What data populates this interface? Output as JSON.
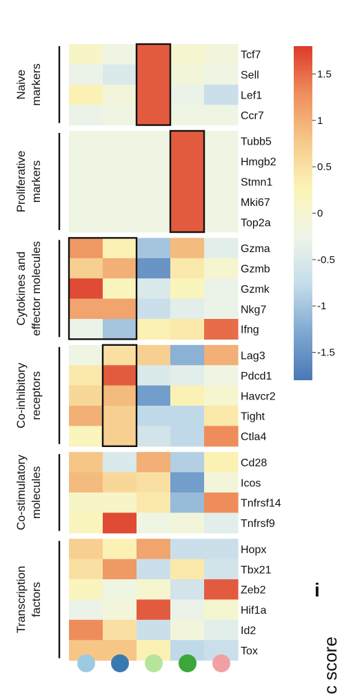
{
  "chart_data": {
    "type": "heatmap",
    "colorbar": {
      "min": -1.8,
      "max": 1.8,
      "ticks": [
        1.5,
        1,
        0.5,
        0,
        -0.5,
        -1,
        -1.5
      ],
      "colors": [
        "#4a78b5",
        "#7fa8d0",
        "#c4dcea",
        "#eef5e8",
        "#fbf5b8",
        "#f6c98a",
        "#ee8f5c",
        "#dc3a2c"
      ]
    },
    "columns": [
      {
        "color": "#9ecae1"
      },
      {
        "color": "#3a79b0"
      },
      {
        "color": "#b5e49a"
      },
      {
        "color": "#3ca63a"
      },
      {
        "color": "#f2a0a4"
      }
    ],
    "groups": [
      {
        "label_lines": [
          "Naive",
          "markers"
        ],
        "rows": [
          {
            "gene": "Tcf7",
            "values": [
              0.1,
              -0.2,
              1.6,
              0.0,
              -0.1
            ]
          },
          {
            "gene": "Sell",
            "values": [
              -0.3,
              -0.5,
              1.6,
              -0.1,
              -0.2
            ]
          },
          {
            "gene": "Lef1",
            "values": [
              0.3,
              -0.1,
              1.6,
              -0.3,
              -0.7
            ]
          },
          {
            "gene": "Ccr7",
            "values": [
              -0.3,
              -0.2,
              1.6,
              -0.2,
              -0.2
            ]
          }
        ],
        "highlight": [
          {
            "col_start": 2,
            "col_end": 2,
            "row_start": 0,
            "row_end": 3
          }
        ]
      },
      {
        "label_lines": [
          "Proliferative",
          "markers"
        ],
        "rows": [
          {
            "gene": "Tubb5",
            "values": [
              -0.2,
              -0.2,
              -0.2,
              1.6,
              -0.2
            ]
          },
          {
            "gene": "Hmgb2",
            "values": [
              -0.2,
              -0.2,
              -0.2,
              1.6,
              -0.2
            ]
          },
          {
            "gene": "Stmn1",
            "values": [
              -0.2,
              -0.2,
              -0.2,
              1.6,
              -0.2
            ]
          },
          {
            "gene": "Mki67",
            "values": [
              -0.2,
              -0.2,
              -0.2,
              1.6,
              -0.2
            ]
          },
          {
            "gene": "Top2a",
            "values": [
              -0.2,
              -0.2,
              -0.2,
              1.6,
              -0.2
            ]
          }
        ],
        "highlight": [
          {
            "col_start": 3,
            "col_end": 3,
            "row_start": 0,
            "row_end": 4
          }
        ]
      },
      {
        "label_lines": [
          "Cytokines and",
          "effector molecules"
        ],
        "rows": [
          {
            "gene": "Gzma",
            "values": [
              1.2,
              0.3,
              -1.0,
              0.9,
              -0.4
            ]
          },
          {
            "gene": "Gzmb",
            "values": [
              0.7,
              1.0,
              -1.5,
              0.4,
              0.0
            ]
          },
          {
            "gene": "Gzmk",
            "values": [
              1.7,
              0.2,
              -0.5,
              0.2,
              -0.3
            ]
          },
          {
            "gene": "Nkg7",
            "values": [
              1.1,
              1.1,
              -0.7,
              -0.4,
              -0.3
            ]
          },
          {
            "gene": "Ifng",
            "values": [
              -0.3,
              -1.0,
              0.3,
              0.4,
              1.5
            ]
          }
        ],
        "highlight": [
          {
            "col_start": 0,
            "col_end": 1,
            "row_start": 0,
            "row_end": 4
          }
        ]
      },
      {
        "label_lines": [
          "Co-inhibitory",
          "receptors"
        ],
        "rows": [
          {
            "gene": "Lag3",
            "values": [
              -0.2,
              0.5,
              0.7,
              -1.2,
              1.0
            ]
          },
          {
            "gene": "Pdcd1",
            "values": [
              0.4,
              1.6,
              -0.5,
              -0.4,
              -0.2
            ]
          },
          {
            "gene": "Havcr2",
            "values": [
              0.6,
              0.9,
              -1.4,
              0.3,
              0.0
            ]
          },
          {
            "gene": "Tight",
            "values": [
              1.0,
              0.7,
              -0.8,
              -0.8,
              0.4
            ]
          },
          {
            "gene": "Ctla4",
            "values": [
              0.2,
              0.7,
              -0.6,
              -0.8,
              1.3
            ]
          }
        ],
        "highlight": [
          {
            "col_start": 1,
            "col_end": 1,
            "row_start": 0,
            "row_end": 4
          }
        ]
      },
      {
        "label_lines": [
          "Co-stimulatory",
          "molecules"
        ],
        "rows": [
          {
            "gene": "Cd28",
            "values": [
              0.8,
              -0.5,
              1.0,
              -0.9,
              0.3
            ]
          },
          {
            "gene": "Icos",
            "values": [
              0.9,
              0.6,
              0.5,
              -1.4,
              -0.1
            ]
          },
          {
            "gene": "Tnfrsf14",
            "values": [
              0.1,
              0.1,
              0.4,
              -1.1,
              1.3
            ]
          },
          {
            "gene": "Tnfrsf9",
            "values": [
              0.2,
              1.7,
              -0.2,
              -0.1,
              -0.4
            ]
          }
        ],
        "highlight": []
      },
      {
        "label_lines": [
          "Transcription",
          "factors"
        ],
        "rows": [
          {
            "gene": "Hopx",
            "values": [
              0.7,
              0.3,
              1.1,
              -0.7,
              -0.7
            ]
          },
          {
            "gene": "Tbx21",
            "values": [
              0.5,
              1.2,
              -0.7,
              0.4,
              -0.6
            ]
          },
          {
            "gene": "Zeb2",
            "values": [
              0.2,
              -0.2,
              0.0,
              -0.6,
              1.6
            ]
          },
          {
            "gene": "Hif1a",
            "values": [
              -0.3,
              -0.1,
              1.6,
              -0.3,
              0.0
            ]
          },
          {
            "gene": "Id2",
            "values": [
              1.3,
              0.5,
              -0.7,
              -0.1,
              -0.4
            ]
          },
          {
            "gene": "Tox",
            "values": [
              0.8,
              0.8,
              0.3,
              -0.8,
              -0.7
            ]
          }
        ],
        "highlight": []
      }
    ]
  },
  "side_text": "c score",
  "panel_letter": "i"
}
